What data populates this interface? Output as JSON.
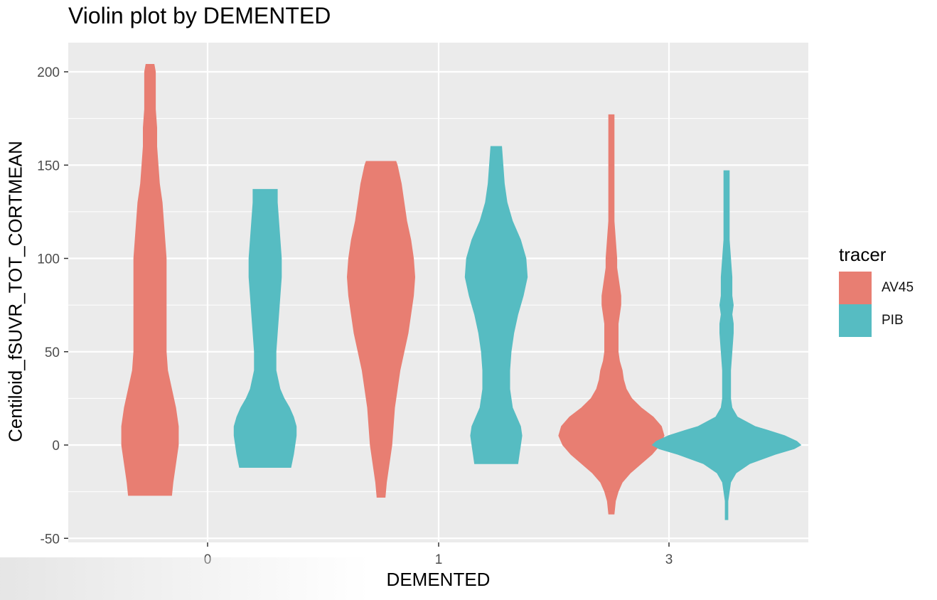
{
  "chart_data": {
    "type": "violin",
    "title": "Violin plot by DEMENTED",
    "xlabel": "DEMENTED",
    "ylabel": "Centiloid_fSUVR_TOT_CORTMEAN",
    "categories": [
      "0",
      "1",
      "3"
    ],
    "ylim": [
      -50,
      215
    ],
    "yticks": [
      -50,
      0,
      50,
      100,
      150,
      200
    ],
    "grid": true,
    "legend": {
      "title": "tracer",
      "position": "right",
      "entries": [
        {
          "name": "AV45",
          "color": "#e87e72"
        },
        {
          "name": "PIB",
          "color": "#56bcc2"
        }
      ]
    },
    "series": [
      {
        "name": "AV45",
        "color": "#e87e72",
        "violins": [
          {
            "category": "0",
            "profile": [
              [
                -27,
                0.16
              ],
              [
                -20,
                0.17
              ],
              [
                -10,
                0.19
              ],
              [
                0,
                0.21
              ],
              [
                10,
                0.21
              ],
              [
                20,
                0.19
              ],
              [
                30,
                0.16
              ],
              [
                40,
                0.13
              ],
              [
                50,
                0.12
              ],
              [
                60,
                0.12
              ],
              [
                70,
                0.12
              ],
              [
                80,
                0.12
              ],
              [
                90,
                0.12
              ],
              [
                100,
                0.12
              ],
              [
                110,
                0.11
              ],
              [
                120,
                0.1
              ],
              [
                130,
                0.09
              ],
              [
                140,
                0.07
              ],
              [
                150,
                0.06
              ],
              [
                160,
                0.05
              ],
              [
                170,
                0.05
              ],
              [
                180,
                0.04
              ],
              [
                190,
                0.04
              ],
              [
                200,
                0.04
              ],
              [
                204,
                0.03
              ]
            ]
          },
          {
            "category": "1",
            "profile": [
              [
                -28,
                0.03
              ],
              [
                -20,
                0.04
              ],
              [
                -10,
                0.06
              ],
              [
                0,
                0.08
              ],
              [
                10,
                0.09
              ],
              [
                20,
                0.1
              ],
              [
                30,
                0.12
              ],
              [
                40,
                0.14
              ],
              [
                50,
                0.17
              ],
              [
                60,
                0.2
              ],
              [
                70,
                0.22
              ],
              [
                80,
                0.24
              ],
              [
                90,
                0.25
              ],
              [
                100,
                0.24
              ],
              [
                110,
                0.22
              ],
              [
                120,
                0.19
              ],
              [
                130,
                0.17
              ],
              [
                140,
                0.15
              ],
              [
                150,
                0.12
              ],
              [
                152,
                0.11
              ]
            ]
          },
          {
            "category": "3",
            "profile": [
              [
                -37,
                0.02
              ],
              [
                -30,
                0.03
              ],
              [
                -25,
                0.05
              ],
              [
                -20,
                0.08
              ],
              [
                -15,
                0.14
              ],
              [
                -10,
                0.22
              ],
              [
                -5,
                0.3
              ],
              [
                0,
                0.36
              ],
              [
                5,
                0.39
              ],
              [
                10,
                0.37
              ],
              [
                15,
                0.31
              ],
              [
                20,
                0.22
              ],
              [
                25,
                0.15
              ],
              [
                30,
                0.11
              ],
              [
                35,
                0.09
              ],
              [
                40,
                0.08
              ],
              [
                45,
                0.06
              ],
              [
                50,
                0.05
              ],
              [
                55,
                0.05
              ],
              [
                60,
                0.05
              ],
              [
                65,
                0.05
              ],
              [
                70,
                0.06
              ],
              [
                75,
                0.07
              ],
              [
                80,
                0.07
              ],
              [
                85,
                0.06
              ],
              [
                90,
                0.05
              ],
              [
                95,
                0.04
              ],
              [
                100,
                0.04
              ],
              [
                110,
                0.03
              ],
              [
                120,
                0.02
              ],
              [
                130,
                0.02
              ],
              [
                140,
                0.02
              ],
              [
                150,
                0.02
              ],
              [
                160,
                0.02
              ],
              [
                170,
                0.02
              ],
              [
                177,
                0.02
              ]
            ]
          }
        ]
      },
      {
        "name": "PIB",
        "color": "#56bcc2",
        "violins": [
          {
            "category": "0",
            "profile": [
              [
                -12,
                0.19
              ],
              [
                -5,
                0.21
              ],
              [
                0,
                0.22
              ],
              [
                5,
                0.23
              ],
              [
                10,
                0.23
              ],
              [
                15,
                0.21
              ],
              [
                20,
                0.18
              ],
              [
                25,
                0.14
              ],
              [
                30,
                0.11
              ],
              [
                40,
                0.08
              ],
              [
                50,
                0.08
              ],
              [
                60,
                0.09
              ],
              [
                70,
                0.1
              ],
              [
                80,
                0.11
              ],
              [
                90,
                0.12
              ],
              [
                100,
                0.12
              ],
              [
                110,
                0.11
              ],
              [
                120,
                0.1
              ],
              [
                130,
                0.09
              ],
              [
                137,
                0.09
              ]
            ]
          },
          {
            "category": "1",
            "profile": [
              [
                -10,
                0.16
              ],
              [
                -5,
                0.17
              ],
              [
                0,
                0.18
              ],
              [
                5,
                0.19
              ],
              [
                10,
                0.18
              ],
              [
                15,
                0.15
              ],
              [
                20,
                0.12
              ],
              [
                30,
                0.1
              ],
              [
                40,
                0.1
              ],
              [
                50,
                0.11
              ],
              [
                60,
                0.13
              ],
              [
                70,
                0.16
              ],
              [
                80,
                0.2
              ],
              [
                90,
                0.23
              ],
              [
                100,
                0.22
              ],
              [
                110,
                0.18
              ],
              [
                120,
                0.12
              ],
              [
                130,
                0.08
              ],
              [
                140,
                0.06
              ],
              [
                150,
                0.05
              ],
              [
                160,
                0.04
              ]
            ]
          },
          {
            "category": "3",
            "profile": [
              [
                -40,
                0.01
              ],
              [
                -30,
                0.01
              ],
              [
                -20,
                0.03
              ],
              [
                -15,
                0.07
              ],
              [
                -10,
                0.17
              ],
              [
                -5,
                0.36
              ],
              [
                -2,
                0.5
              ],
              [
                0,
                0.55
              ],
              [
                2,
                0.52
              ],
              [
                5,
                0.43
              ],
              [
                8,
                0.3
              ],
              [
                10,
                0.21
              ],
              [
                15,
                0.08
              ],
              [
                20,
                0.04
              ],
              [
                25,
                0.03
              ],
              [
                30,
                0.03
              ],
              [
                40,
                0.03
              ],
              [
                50,
                0.04
              ],
              [
                60,
                0.05
              ],
              [
                65,
                0.05
              ],
              [
                70,
                0.04
              ],
              [
                75,
                0.05
              ],
              [
                80,
                0.04
              ],
              [
                90,
                0.04
              ],
              [
                100,
                0.03
              ],
              [
                110,
                0.02
              ],
              [
                120,
                0.02
              ],
              [
                130,
                0.02
              ],
              [
                140,
                0.02
              ],
              [
                147,
                0.02
              ]
            ]
          }
        ]
      }
    ]
  }
}
